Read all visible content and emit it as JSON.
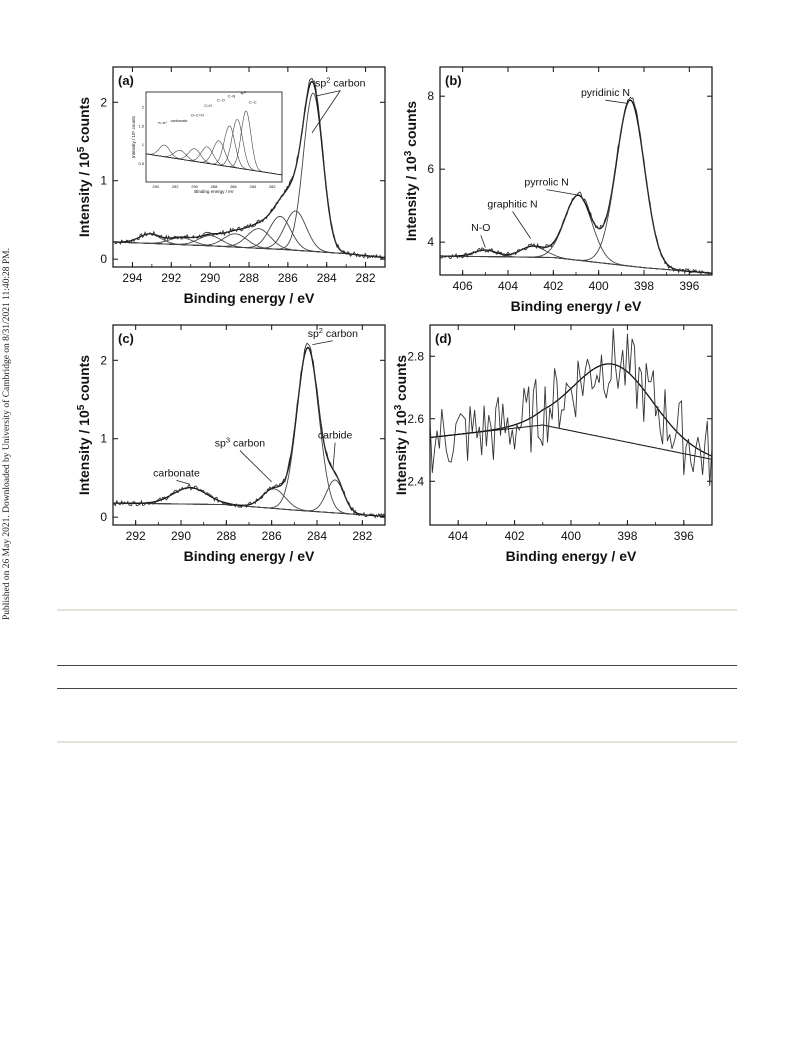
{
  "side_note": "Published on 26 May 2021. Downloaded by University of Cambridge on 8/31/2021 11:40:28 PM.",
  "chart_data": [
    {
      "type": "line",
      "panel_label": "(a)",
      "xlabel": "Binding energy / eV",
      "ylabel_main": "Intensity / 10",
      "ylabel_sup": "5",
      "ylabel_tail": " counts",
      "x_range": [
        295,
        281
      ],
      "y_range": [
        -0.1,
        2.45
      ],
      "x_ticks": [
        294,
        292,
        290,
        288,
        286,
        284,
        282
      ],
      "y_ticks": [
        0,
        1,
        2
      ],
      "background": [
        [
          295,
          0.22
        ],
        [
          290,
          0.17
        ],
        [
          286,
          0.12
        ],
        [
          283,
          0.07
        ],
        [
          281,
          0.02
        ]
      ],
      "peaks": [
        {
          "center": 293.1,
          "height": 0.12,
          "width": 0.55
        },
        {
          "center": 291.5,
          "height": 0.09,
          "width": 0.6
        },
        {
          "center": 290.0,
          "height": 0.13,
          "width": 0.6
        },
        {
          "center": 288.7,
          "height": 0.17,
          "width": 0.6
        },
        {
          "center": 287.5,
          "height": 0.25,
          "width": 0.6
        },
        {
          "center": 286.4,
          "height": 0.42,
          "width": 0.55
        },
        {
          "center": 285.6,
          "height": 0.5,
          "width": 0.55
        },
        {
          "center": 284.7,
          "height": 2.02,
          "width": 0.5
        }
      ],
      "annotations": [
        {
          "base": "sp",
          "sup": "2",
          "tail": " carbon",
          "tx": 283.3,
          "ty": 2.2,
          "ax": 284.55,
          "ay": 2.08,
          "bx": 284.55,
          "by": 2.12
        }
      ],
      "inset": {
        "ylabel": "Intensity / 10⁵ counts",
        "xlabel": "Binding energy / eV",
        "x_range": [
          295,
          281
        ],
        "y_range": [
          0,
          2.4
        ],
        "x_ticks": [
          294,
          292,
          290,
          288,
          286,
          284,
          282
        ],
        "y_ticks": [
          0.5,
          1.0,
          1.5,
          2.0
        ],
        "labels": [
          "π–π*",
          "carbonate",
          "O–C=O",
          "C=O",
          "C–O",
          "C–N",
          "sp³",
          "C–C"
        ]
      }
    },
    {
      "type": "line",
      "panel_label": "(b)",
      "xlabel": "Binding energy / eV",
      "ylabel_main": "Intensity / 10",
      "ylabel_sup": "3",
      "ylabel_tail": " counts",
      "x_range": [
        407,
        395
      ],
      "y_range": [
        3.1,
        8.8
      ],
      "x_ticks": [
        406,
        404,
        402,
        400,
        398,
        396
      ],
      "y_ticks": [
        4,
        6,
        8
      ],
      "background": [
        [
          407,
          3.62
        ],
        [
          402,
          3.58
        ],
        [
          398,
          3.3
        ],
        [
          395,
          3.15
        ]
      ],
      "peaks": [
        {
          "center": 405.0,
          "height": 0.18,
          "width": 0.5
        },
        {
          "center": 402.9,
          "height": 0.3,
          "width": 0.55
        },
        {
          "center": 400.9,
          "height": 1.78,
          "width": 0.6
        },
        {
          "center": 398.6,
          "height": 4.55,
          "width": 0.62
        }
      ],
      "annotations": [
        {
          "base": "N-O",
          "sup": "",
          "tail": "",
          "tx": 405.2,
          "ty": 4.3,
          "ax": 405.0,
          "ay": 3.85
        },
        {
          "base": "graphitic N",
          "sup": "",
          "tail": "",
          "tx": 403.8,
          "ty": 4.95,
          "ax": 403.0,
          "ay": 4.1
        },
        {
          "base": "pyrrolic N",
          "sup": "",
          "tail": "",
          "tx": 402.3,
          "ty": 5.55,
          "ax": 401.0,
          "ay": 5.3
        },
        {
          "base": "pyridinic N",
          "sup": "",
          "tail": "",
          "tx": 399.7,
          "ty": 8.0,
          "ax": 398.7,
          "ay": 7.8
        }
      ]
    },
    {
      "type": "line",
      "panel_label": "(c)",
      "xlabel": "Binding energy / eV",
      "ylabel_main": "Intensity / 10",
      "ylabel_sup": "5",
      "ylabel_tail": " counts",
      "x_range": [
        293,
        281
      ],
      "y_range": [
        -0.1,
        2.45
      ],
      "x_ticks": [
        292,
        290,
        288,
        286,
        284,
        282
      ],
      "y_ticks": [
        0,
        1,
        2
      ],
      "background": [
        [
          293,
          0.18
        ],
        [
          288,
          0.16
        ],
        [
          285,
          0.09
        ],
        [
          283,
          0.05
        ],
        [
          281,
          0.01
        ]
      ],
      "peaks": [
        {
          "center": 289.6,
          "height": 0.21,
          "width": 0.75
        },
        {
          "center": 285.9,
          "height": 0.25,
          "width": 0.5
        },
        {
          "center": 284.4,
          "height": 2.08,
          "width": 0.48
        },
        {
          "center": 283.2,
          "height": 0.42,
          "width": 0.38
        }
      ],
      "annotations": [
        {
          "base": "carbonate",
          "sup": "",
          "tail": "",
          "tx": 290.2,
          "ty": 0.52,
          "ax": 289.6,
          "ay": 0.42
        },
        {
          "base": "sp",
          "sup": "3",
          "tail": " carbon",
          "tx": 287.4,
          "ty": 0.9,
          "ax": 286.0,
          "ay": 0.45
        },
        {
          "base": "carbide",
          "sup": "",
          "tail": "",
          "tx": 283.2,
          "ty": 1.0,
          "ax": 283.3,
          "ay": 0.6
        },
        {
          "base": "sp",
          "sup": "2",
          "tail": " carbon",
          "tx": 283.3,
          "ty": 2.3,
          "ax": 284.2,
          "ay": 2.2
        }
      ]
    },
    {
      "type": "line",
      "panel_label": "(d)",
      "xlabel": "Binding energy / eV",
      "ylabel_main": "Intensity / 10",
      "ylabel_sup": "3",
      "ylabel_tail": " counts",
      "x_range": [
        405,
        395
      ],
      "y_range": [
        2.26,
        2.9
      ],
      "x_ticks": [
        404,
        402,
        400,
        398,
        396
      ],
      "y_ticks": [
        2.4,
        2.6,
        2.8
      ],
      "background": [
        [
          405,
          2.54
        ],
        [
          401,
          2.58
        ],
        [
          395,
          2.47
        ]
      ],
      "peaks": [
        {
          "center": 398.5,
          "height": 0.24,
          "width": 1.4
        }
      ],
      "noise_amplitude": 0.12
    }
  ]
}
